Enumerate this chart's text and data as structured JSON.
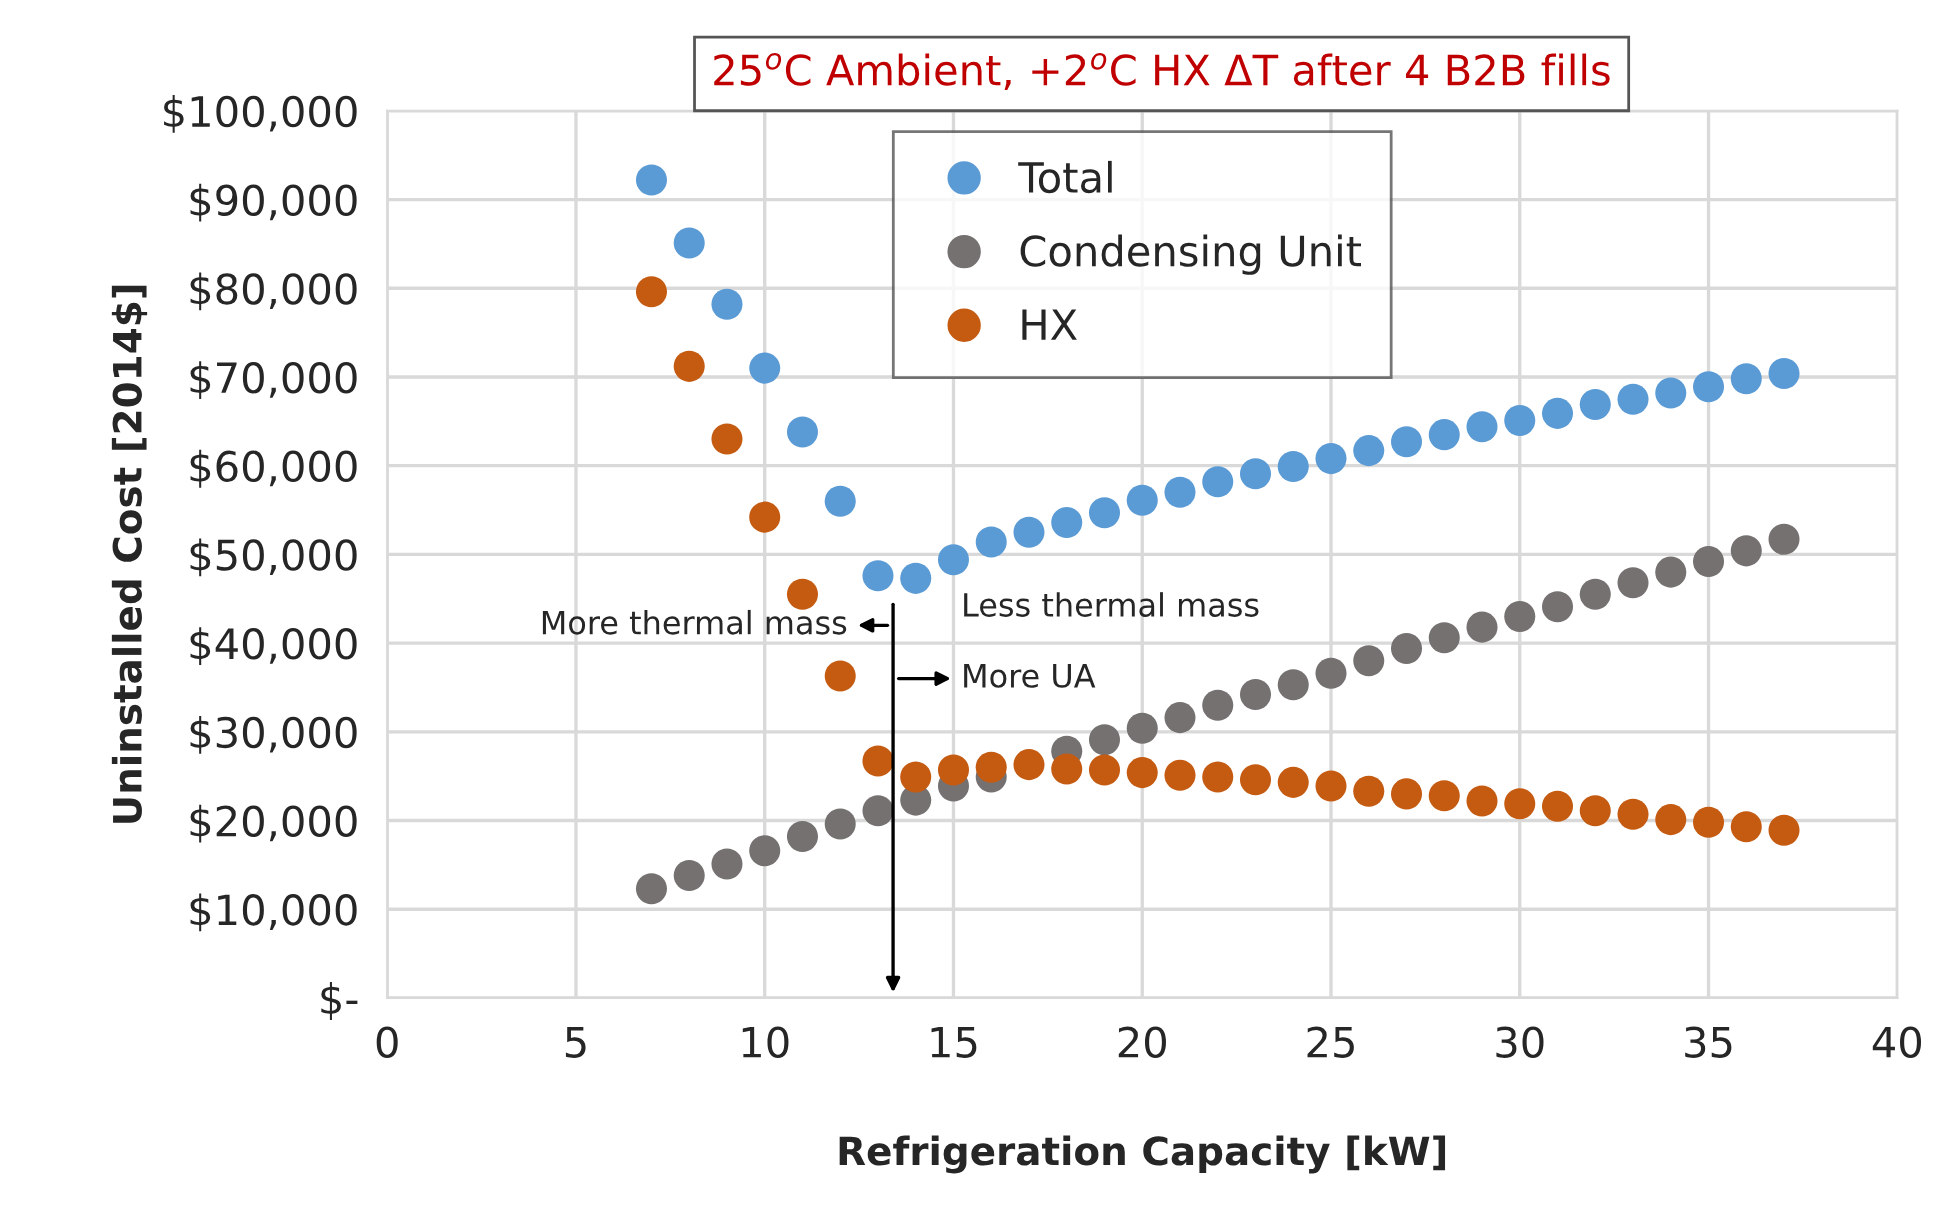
{
  "chart_data": {
    "type": "scatter",
    "title": "25$^{o}$C Ambient, +2$^{o}$C HX ΔT after 4 B2B fills",
    "xlabel": "Refrigeration Capacity [kW]",
    "ylabel": "Uninstalled Cost [2014$]",
    "x": [
      7,
      8,
      9,
      10,
      11,
      12,
      13,
      14,
      15,
      16,
      17,
      18,
      19,
      20,
      21,
      22,
      23,
      24,
      25,
      26,
      27,
      28,
      29,
      30,
      31,
      32,
      33,
      34,
      35,
      36,
      37
    ],
    "series": [
      {
        "name": "Total",
        "color": "#5b9bd5",
        "values": [
          92200,
          85100,
          78200,
          71000,
          63800,
          56000,
          47600,
          47300,
          49400,
          51400,
          52500,
          53600,
          54700,
          56100,
          57000,
          58200,
          59100,
          59900,
          60800,
          61700,
          62700,
          63500,
          64400,
          65100,
          65900,
          66900,
          67500,
          68200,
          68900,
          69800,
          70400
        ]
      },
      {
        "name": "Condensing Unit",
        "color": "#767171",
        "values": [
          12300,
          13800,
          15100,
          16600,
          18200,
          19600,
          21100,
          22300,
          23900,
          24900,
          null,
          27800,
          29100,
          30400,
          31600,
          33000,
          34200,
          35300,
          36600,
          38000,
          39400,
          40600,
          41800,
          43000,
          44100,
          45500,
          46800,
          48000,
          49200,
          50400,
          51700
        ]
      },
      {
        "name": "HX",
        "color": "#c55a11",
        "values": [
          79600,
          71200,
          63000,
          54200,
          45500,
          36300,
          26700,
          24900,
          25700,
          26000,
          26300,
          25800,
          25700,
          25400,
          25100,
          24900,
          24600,
          24300,
          23900,
          23300,
          23000,
          22800,
          22200,
          21900,
          21600,
          21100,
          20700,
          20100,
          19800,
          19300,
          18900
        ]
      }
    ],
    "xlim": [
      0,
      40
    ],
    "xticks": [
      0,
      5,
      10,
      15,
      20,
      25,
      30,
      35,
      40
    ],
    "ylim": [
      0,
      100000
    ],
    "yticks": [
      {
        "value": 0,
        "label": "$-"
      },
      {
        "value": 10000,
        "label": "$10,000"
      },
      {
        "value": 20000,
        "label": "$20,000"
      },
      {
        "value": 30000,
        "label": "$30,000"
      },
      {
        "value": 40000,
        "label": "$40,000"
      },
      {
        "value": 50000,
        "label": "$50,000"
      },
      {
        "value": 60000,
        "label": "$60,000"
      },
      {
        "value": 70000,
        "label": "$70,000"
      },
      {
        "value": 80000,
        "label": "$80,000"
      },
      {
        "value": 90000,
        "label": "$90,000"
      },
      {
        "value": 100000,
        "label": "$100,000"
      }
    ],
    "annotations": [
      "More thermal mass",
      "Less thermal mass",
      "More UA"
    ],
    "grid": true,
    "legend": "top",
    "marker": "circle"
  }
}
